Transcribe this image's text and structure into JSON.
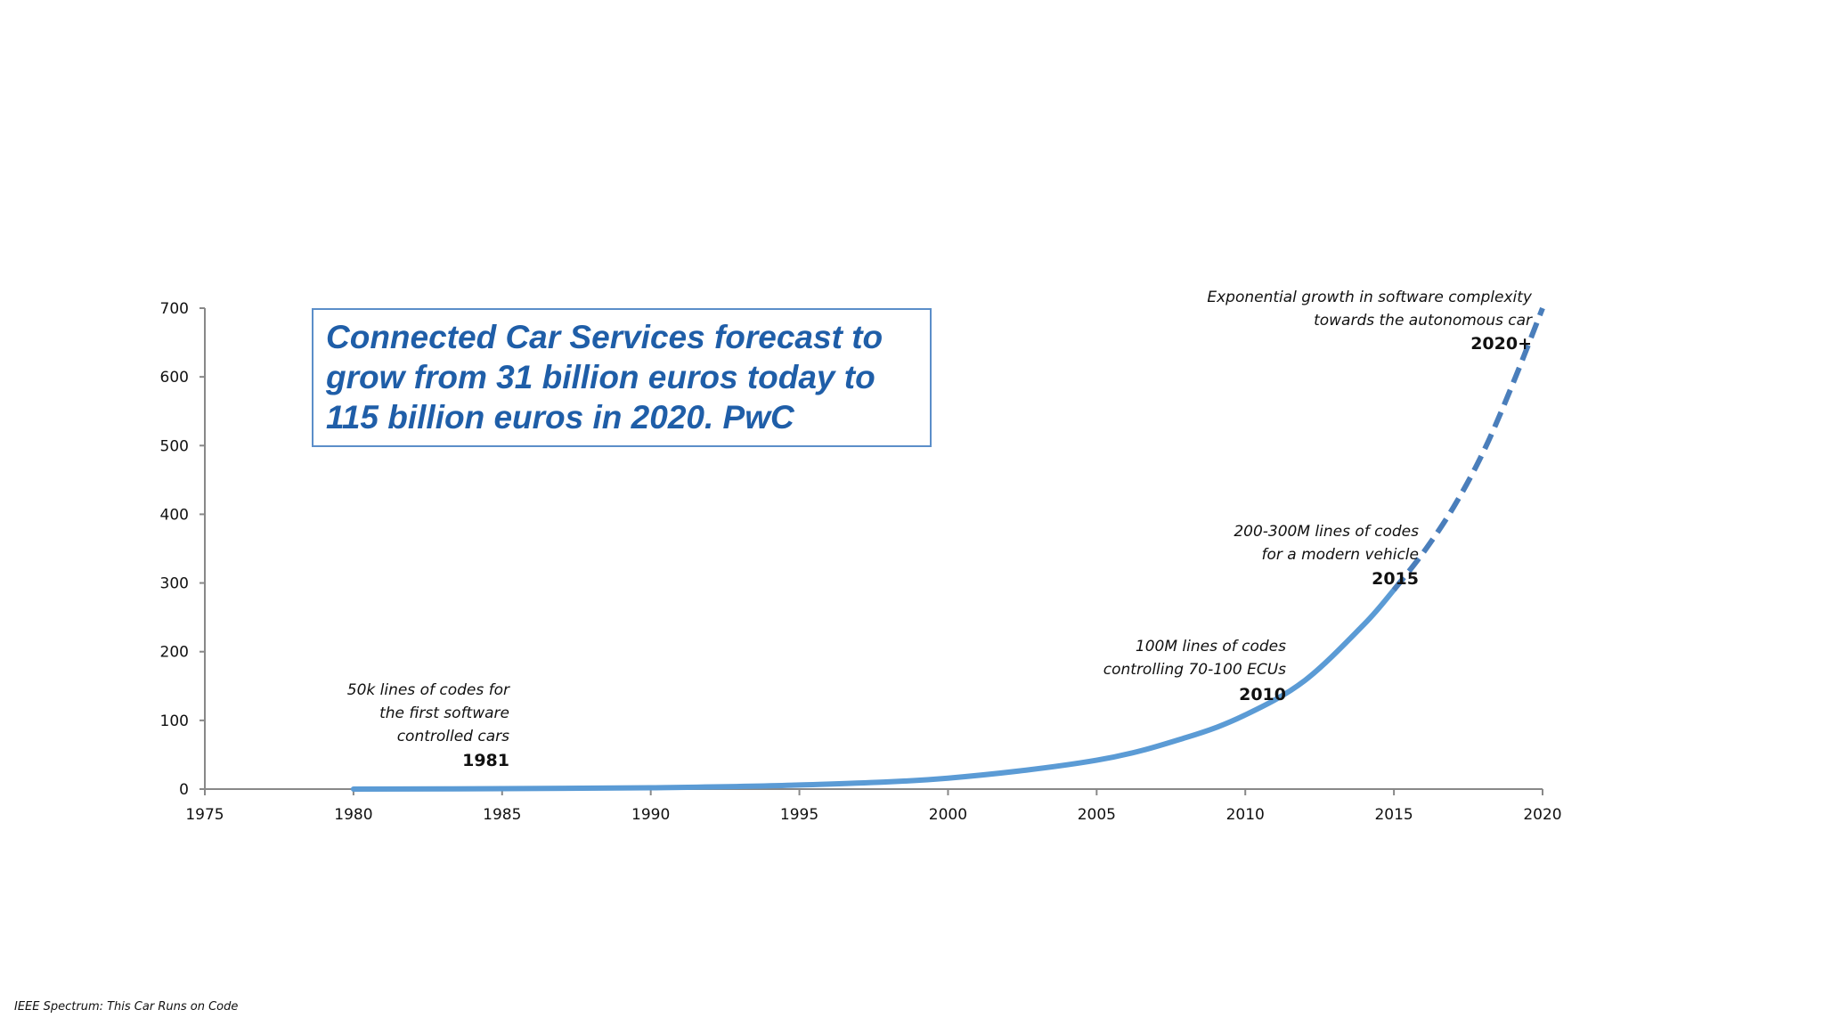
{
  "chart_data": {
    "type": "line",
    "title": "",
    "xlabel": "",
    "ylabel": "",
    "xlim": [
      1975,
      2020
    ],
    "ylim": [
      0,
      700
    ],
    "x_ticks": [
      "1975",
      "1980",
      "1985",
      "1990",
      "1995",
      "2000",
      "2005",
      "2010",
      "2015",
      "2020"
    ],
    "y_ticks": [
      "0",
      "100",
      "200",
      "300",
      "400",
      "500",
      "600",
      "700"
    ],
    "grid": false,
    "series": [
      {
        "style": "solid",
        "color": "#5b9bd5",
        "points": [
          [
            1980,
            0.05
          ],
          [
            1985,
            0.6
          ],
          [
            1990,
            2
          ],
          [
            1995,
            6
          ],
          [
            2000,
            16
          ],
          [
            2005,
            42
          ],
          [
            2008,
            75
          ],
          [
            2010,
            108
          ],
          [
            2012,
            158
          ],
          [
            2014,
            240
          ],
          [
            2015,
            290
          ]
        ]
      },
      {
        "style": "dashed",
        "color": "#4a7ebb",
        "points": [
          [
            2015,
            290
          ],
          [
            2016,
            345
          ],
          [
            2017,
            410
          ],
          [
            2018,
            490
          ],
          [
            2019,
            590
          ],
          [
            2020,
            700
          ]
        ]
      }
    ],
    "annotations": [
      {
        "year": "1981",
        "lines": [
          "50k lines of codes for",
          "the first software",
          "controlled  cars"
        ]
      },
      {
        "year": "2010",
        "lines": [
          "100M lines of codes",
          "controlling  70-100 ECUs"
        ]
      },
      {
        "year": "2015",
        "lines": [
          "200-300M  lines of codes",
          "for a modern vehicle"
        ]
      },
      {
        "year": "2020+",
        "lines": [
          "Exponential  growth in software complexity",
          "towards the autonomous car"
        ]
      }
    ]
  },
  "callout": {
    "lines": [
      "Connected Car Services forecast to",
      "grow from 31 billion euros today to",
      "115 billion euros in 2020. PwC"
    ]
  },
  "footnote": "IEEE Spectrum: This Car Runs on Code",
  "colors": {
    "axis": "#888888",
    "callout_border": "#5b8ec9",
    "callout_text": "#1f5ea8"
  }
}
